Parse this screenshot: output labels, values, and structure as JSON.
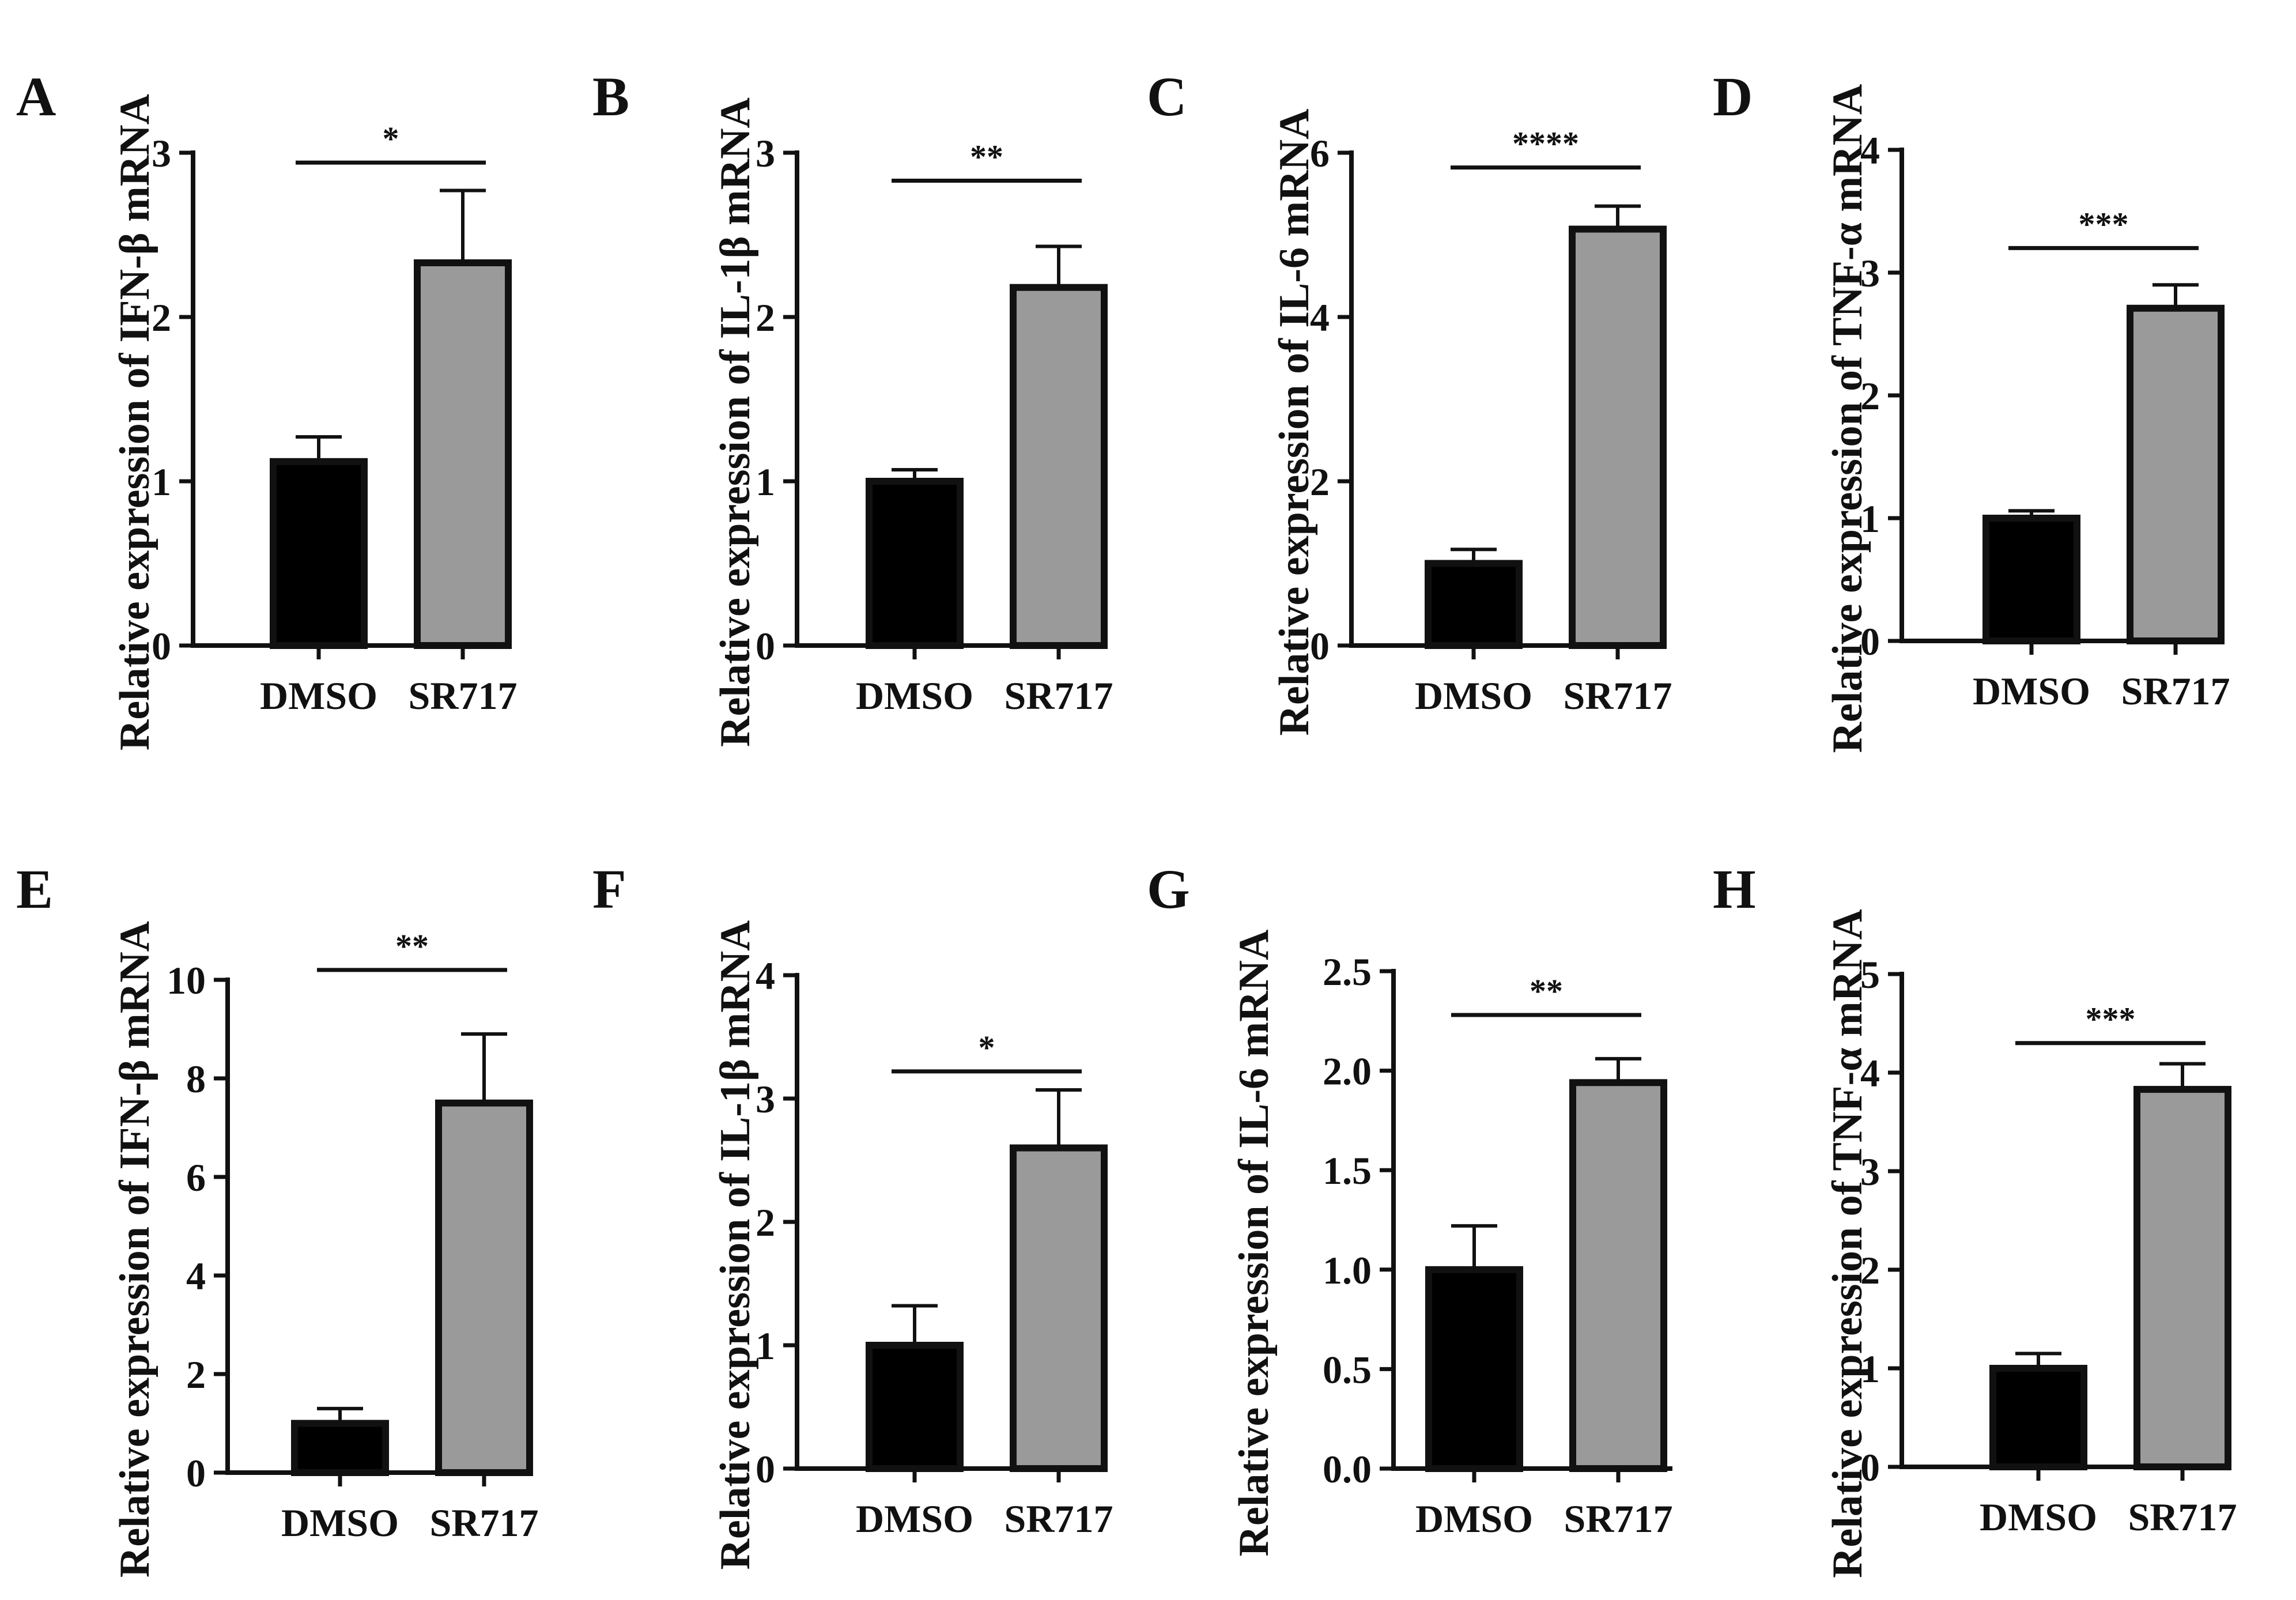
{
  "chart_data": [
    {
      "panel": "A",
      "type": "bar",
      "title": "",
      "xlabel": "",
      "ylabel": "Relative expression of IFN-β mRNA",
      "categories": [
        "DMSO",
        "SR717"
      ],
      "values": [
        1.12,
        2.33
      ],
      "errors": [
        0.15,
        0.44
      ],
      "ylim": [
        0,
        3
      ],
      "yticks": [
        0,
        1,
        2,
        3
      ],
      "ytick_labels": [
        "0",
        "1",
        "2",
        "3"
      ],
      "significance": "*",
      "sig_y": 2.94,
      "bar_colors": [
        "#000000",
        "#9a9a9a"
      ]
    },
    {
      "panel": "B",
      "type": "bar",
      "title": "",
      "xlabel": "",
      "ylabel": "Relative expression of IL-1β mRNA",
      "categories": [
        "DMSO",
        "SR717"
      ],
      "values": [
        1.0,
        2.18
      ],
      "errors": [
        0.07,
        0.25
      ],
      "ylim": [
        0,
        3
      ],
      "yticks": [
        0,
        1,
        2,
        3
      ],
      "ytick_labels": [
        "0",
        "1",
        "2",
        "3"
      ],
      "significance": "**",
      "sig_y": 2.83,
      "bar_colors": [
        "#000000",
        "#9a9a9a"
      ]
    },
    {
      "panel": "C",
      "type": "bar",
      "title": "",
      "xlabel": "",
      "ylabel": "Relative expression of IL-6 mRNA",
      "categories": [
        "DMSO",
        "SR717"
      ],
      "values": [
        1.0,
        5.07
      ],
      "errors": [
        0.17,
        0.28
      ],
      "ylim": [
        0,
        6
      ],
      "yticks": [
        0,
        2,
        4,
        6
      ],
      "ytick_labels": [
        "0",
        "2",
        "4",
        "6"
      ],
      "significance": "****",
      "sig_y": 5.82,
      "bar_colors": [
        "#000000",
        "#9a9a9a"
      ]
    },
    {
      "panel": "D",
      "type": "bar",
      "title": "",
      "xlabel": "",
      "ylabel": "Relative expression of TNF-α mRNA",
      "categories": [
        "DMSO",
        "SR717"
      ],
      "values": [
        1.0,
        2.71
      ],
      "errors": [
        0.06,
        0.19
      ],
      "ylim": [
        0,
        4
      ],
      "yticks": [
        0,
        1,
        2,
        3,
        4
      ],
      "ytick_labels": [
        "0",
        "1",
        "2",
        "3",
        "4"
      ],
      "significance": "***",
      "sig_y": 3.2,
      "bar_colors": [
        "#000000",
        "#9a9a9a"
      ]
    },
    {
      "panel": "E",
      "type": "bar",
      "title": "",
      "xlabel": "",
      "ylabel": "Relative expression of IFN-β mRNA",
      "categories": [
        "DMSO",
        "SR717"
      ],
      "values": [
        1.0,
        7.5
      ],
      "errors": [
        0.3,
        1.4
      ],
      "ylim": [
        0,
        10
      ],
      "yticks": [
        0,
        2,
        4,
        6,
        8,
        10
      ],
      "ytick_labels": [
        "0",
        "2",
        "4",
        "6",
        "8",
        "10"
      ],
      "significance": "**",
      "sig_y": 10.2,
      "bar_colors": [
        "#000000",
        "#9a9a9a"
      ]
    },
    {
      "panel": "F",
      "type": "bar",
      "title": "",
      "xlabel": "",
      "ylabel": "Relative expression of IL-1β mRNA",
      "categories": [
        "DMSO",
        "SR717"
      ],
      "values": [
        1.0,
        2.6
      ],
      "errors": [
        0.32,
        0.47
      ],
      "ylim": [
        0,
        4
      ],
      "yticks": [
        0,
        1,
        2,
        3,
        4
      ],
      "ytick_labels": [
        "0",
        "1",
        "2",
        "3",
        "4"
      ],
      "significance": "*",
      "sig_y": 3.22,
      "bar_colors": [
        "#000000",
        "#9a9a9a"
      ]
    },
    {
      "panel": "G",
      "type": "bar",
      "title": "",
      "xlabel": "",
      "ylabel": "Relative expression of IL-6 mRNA",
      "categories": [
        "DMSO",
        "SR717"
      ],
      "values": [
        1.0,
        1.94
      ],
      "errors": [
        0.22,
        0.12
      ],
      "ylim": [
        0,
        2.5
      ],
      "yticks": [
        0,
        0.5,
        1.0,
        1.5,
        2.0,
        2.5
      ],
      "ytick_labels": [
        "0.0",
        "0.5",
        "1.0",
        "1.5",
        "2.0",
        "2.5"
      ],
      "significance": "**",
      "sig_y": 2.28,
      "bar_colors": [
        "#000000",
        "#9a9a9a"
      ]
    },
    {
      "panel": "H",
      "type": "bar",
      "title": "",
      "xlabel": "",
      "ylabel": "Relative expression of TNF-α mRNA",
      "categories": [
        "DMSO",
        "SR717"
      ],
      "values": [
        1.0,
        3.83
      ],
      "errors": [
        0.15,
        0.26
      ],
      "ylim": [
        0,
        5
      ],
      "yticks": [
        0,
        1,
        2,
        3,
        4,
        5
      ],
      "ytick_labels": [
        "0",
        "1",
        "2",
        "3",
        "4",
        "5"
      ],
      "significance": "***",
      "sig_y": 4.3,
      "bar_colors": [
        "#000000",
        "#9a9a9a"
      ]
    }
  ]
}
